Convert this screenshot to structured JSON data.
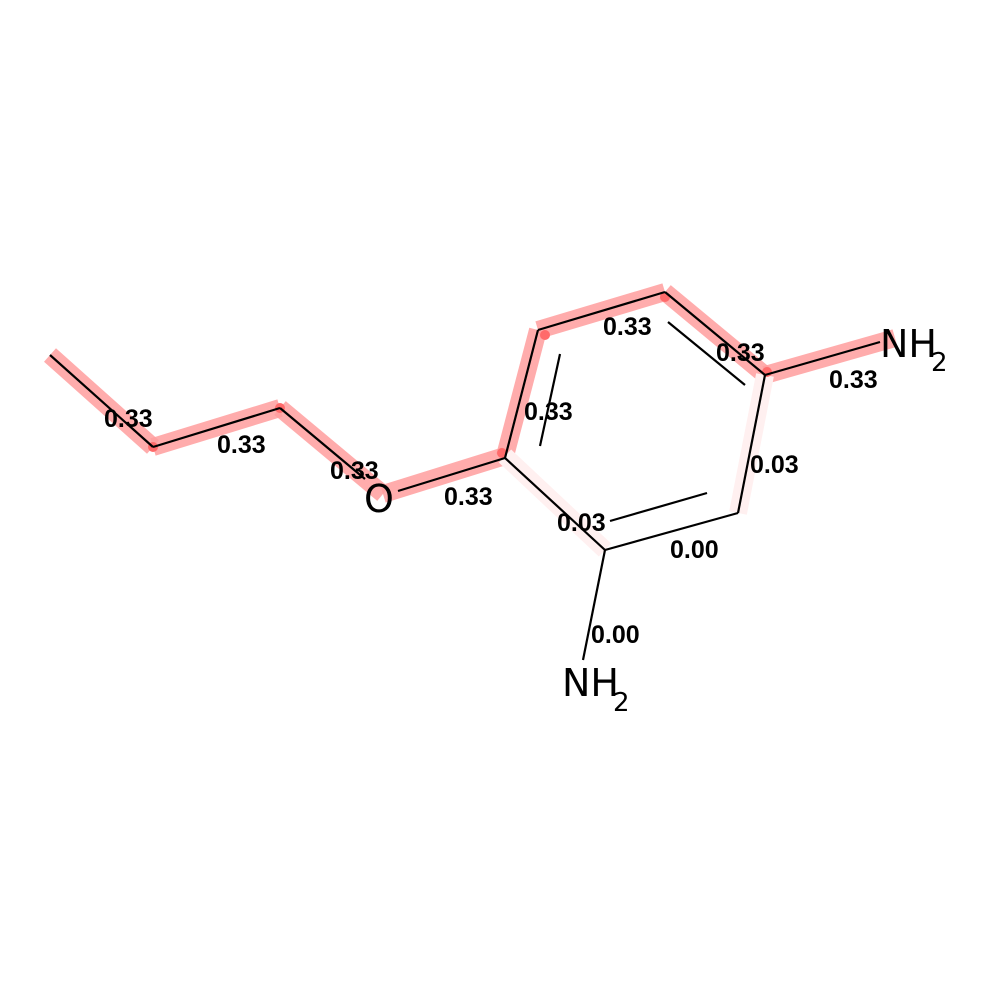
{
  "diagram": {
    "type": "molecule-attribution",
    "colors": {
      "highlight_strong": "#ff9e9e",
      "highlight_faint": "#fff0f0",
      "atom_dot": "#ff6b6b",
      "bond": "#000000",
      "background": "#ffffff"
    },
    "atoms": [
      {
        "id": "O1",
        "element": "O",
        "sub": ""
      },
      {
        "id": "N1",
        "element": "NH",
        "sub": "2"
      },
      {
        "id": "N2",
        "element": "NH",
        "sub": "2"
      }
    ],
    "bond_labels": [
      {
        "id": "b1",
        "text": "0.33"
      },
      {
        "id": "b2",
        "text": "0.33"
      },
      {
        "id": "b3",
        "text": "0.33"
      },
      {
        "id": "b4",
        "text": "0.33"
      },
      {
        "id": "b5",
        "text": "0.33"
      },
      {
        "id": "b6",
        "text": "0.33"
      },
      {
        "id": "b7",
        "text": "0.33"
      },
      {
        "id": "b8",
        "text": "0.33"
      },
      {
        "id": "b9",
        "text": "0.03"
      },
      {
        "id": "b10",
        "text": "0.00"
      },
      {
        "id": "b11",
        "text": "0.03"
      },
      {
        "id": "b12",
        "text": "0.00"
      }
    ]
  }
}
